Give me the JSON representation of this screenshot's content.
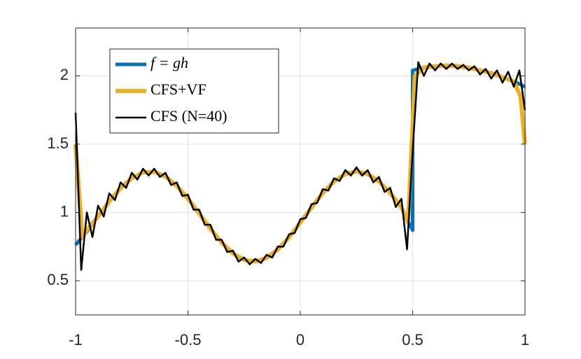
{
  "chart_data": {
    "type": "line",
    "xlim": [
      -1,
      1
    ],
    "ylim": [
      0.25,
      2.35
    ],
    "xticks": [
      -1,
      -0.5,
      0,
      0.5,
      1
    ],
    "yticks": [
      0.5,
      1,
      1.5,
      2
    ],
    "grid": true,
    "legend": "northwest",
    "series": [
      {
        "name": "f = gh",
        "color": "#0072bd",
        "x": [
          -1,
          -0.95,
          -0.9,
          -0.85,
          -0.8,
          -0.75,
          -0.7,
          -0.65,
          -0.6,
          -0.55,
          -0.5,
          -0.45,
          -0.4,
          -0.35,
          -0.3,
          -0.25,
          -0.2,
          -0.15,
          -0.1,
          -0.05,
          0,
          0.05,
          0.1,
          0.15,
          0.2,
          0.25,
          0.3,
          0.35,
          0.4,
          0.45,
          0.5,
          0.5,
          0.55,
          0.6,
          0.65,
          0.7,
          0.75,
          0.8,
          0.85,
          0.9,
          0.95,
          1
        ],
        "values": [
          0.762,
          0.859,
          0.97,
          1.081,
          1.178,
          1.251,
          1.293,
          1.297,
          1.263,
          1.195,
          1.101,
          0.992,
          0.881,
          0.78,
          0.7,
          0.652,
          0.641,
          0.667,
          0.729,
          0.818,
          0.925,
          1.037,
          1.142,
          1.226,
          1.281,
          1.3,
          1.281,
          1.226,
          1.142,
          1.037,
          0.87,
          2.04,
          2.06,
          2.07,
          2.075,
          2.07,
          2.06,
          2.04,
          2.02,
          1.99,
          1.96,
          1.92
        ]
      },
      {
        "name": "CFS+VF",
        "color": "#edb120",
        "x": [
          -1,
          -0.97,
          -0.95,
          -0.9,
          -0.85,
          -0.8,
          -0.75,
          -0.7,
          -0.65,
          -0.6,
          -0.55,
          -0.5,
          -0.45,
          -0.4,
          -0.35,
          -0.3,
          -0.25,
          -0.2,
          -0.15,
          -0.1,
          -0.05,
          0,
          0.05,
          0.1,
          0.15,
          0.2,
          0.25,
          0.3,
          0.35,
          0.4,
          0.45,
          0.48,
          0.51,
          0.55,
          0.6,
          0.65,
          0.7,
          0.75,
          0.8,
          0.85,
          0.9,
          0.95,
          0.98,
          1
        ],
        "values": [
          1.5,
          0.82,
          0.87,
          0.97,
          1.081,
          1.178,
          1.251,
          1.293,
          1.297,
          1.263,
          1.195,
          1.101,
          0.992,
          0.881,
          0.78,
          0.7,
          0.652,
          0.641,
          0.667,
          0.729,
          0.818,
          0.925,
          1.037,
          1.142,
          1.226,
          1.281,
          1.3,
          1.281,
          1.226,
          1.142,
          1.037,
          0.93,
          2.0,
          2.06,
          2.07,
          2.075,
          2.07,
          2.06,
          2.04,
          2.02,
          1.99,
          1.96,
          1.85,
          1.5
        ]
      },
      {
        "name": "CFS (N=40)",
        "color": "#000000",
        "x": [
          -1,
          -0.975,
          -0.95,
          -0.925,
          -0.9,
          -0.875,
          -0.85,
          -0.825,
          -0.8,
          -0.775,
          -0.75,
          -0.725,
          -0.7,
          -0.675,
          -0.65,
          -0.625,
          -0.6,
          -0.575,
          -0.55,
          -0.525,
          -0.5,
          -0.475,
          -0.45,
          -0.425,
          -0.4,
          -0.375,
          -0.35,
          -0.325,
          -0.3,
          -0.275,
          -0.25,
          -0.225,
          -0.2,
          -0.175,
          -0.15,
          -0.125,
          -0.1,
          -0.075,
          -0.05,
          -0.025,
          0,
          0.025,
          0.05,
          0.075,
          0.1,
          0.125,
          0.15,
          0.175,
          0.2,
          0.225,
          0.25,
          0.275,
          0.3,
          0.325,
          0.35,
          0.375,
          0.4,
          0.425,
          0.45,
          0.475,
          0.5,
          0.525,
          0.55,
          0.575,
          0.6,
          0.625,
          0.65,
          0.675,
          0.7,
          0.725,
          0.75,
          0.775,
          0.8,
          0.825,
          0.85,
          0.875,
          0.9,
          0.925,
          0.95,
          0.975,
          1
        ],
        "values": [
          1.73,
          0.58,
          1.0,
          0.82,
          1.05,
          0.97,
          1.14,
          1.09,
          1.22,
          1.18,
          1.29,
          1.24,
          1.32,
          1.27,
          1.32,
          1.26,
          1.29,
          1.2,
          1.22,
          1.12,
          1.13,
          1.02,
          1.02,
          0.91,
          0.91,
          0.8,
          0.8,
          0.71,
          0.72,
          0.64,
          0.67,
          0.62,
          0.66,
          0.63,
          0.69,
          0.67,
          0.75,
          0.75,
          0.84,
          0.85,
          0.95,
          0.96,
          1.06,
          1.07,
          1.17,
          1.16,
          1.25,
          1.23,
          1.31,
          1.27,
          1.33,
          1.27,
          1.31,
          1.22,
          1.26,
          1.15,
          1.18,
          1.04,
          1.1,
          0.73,
          1.45,
          2.1,
          2.0,
          2.09,
          2.04,
          2.09,
          2.05,
          2.09,
          2.05,
          2.08,
          2.04,
          2.07,
          2.01,
          2.05,
          1.98,
          2.04,
          1.95,
          2.03,
          1.92,
          2.04,
          1.75
        ]
      }
    ]
  }
}
